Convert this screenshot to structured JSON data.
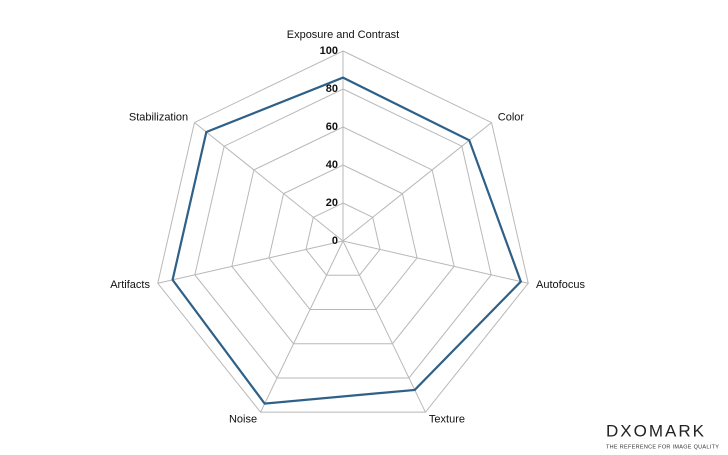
{
  "chart_data": {
    "type": "radar",
    "categories": [
      "Exposure and Contrast",
      "Color",
      "Autofocus",
      "Texture",
      "Noise",
      "Artifacts",
      "Stabilization"
    ],
    "values": [
      86,
      85,
      96,
      87,
      95,
      92,
      92
    ],
    "color": "#2e6088",
    "ylim": [
      0,
      100
    ],
    "yticks": [
      0,
      20,
      40,
      60,
      80,
      100
    ],
    "grid": true
  },
  "watermark": {
    "brand": "DXOMARK",
    "tagline": "THE REFERENCE FOR IMAGE QUALITY"
  }
}
